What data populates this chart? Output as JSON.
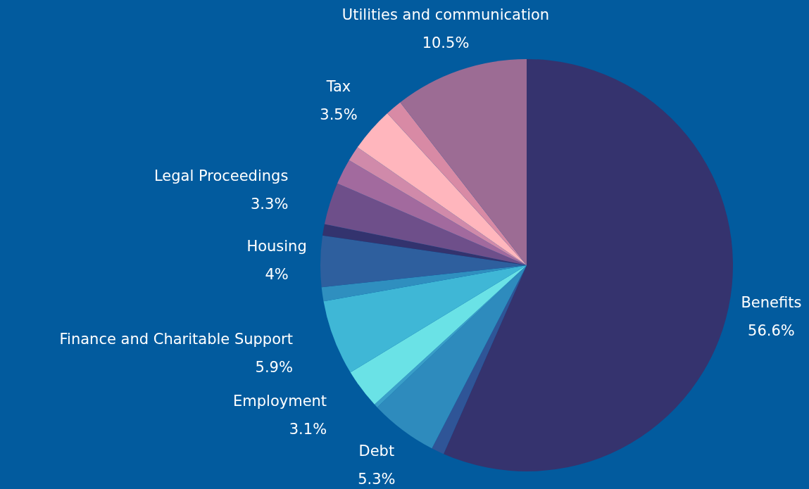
{
  "chart_data": {
    "type": "pie",
    "categories": [
      "Benefits",
      null,
      "Debt",
      null,
      "Employment",
      "Finance and Charitable Support",
      null,
      "Housing",
      null,
      "Legal Proceedings",
      null,
      null,
      "Tax",
      null,
      "Utilities and communication"
    ],
    "values": [
      56.6,
      1.0,
      5.3,
      0.3,
      3.1,
      5.9,
      1.1,
      4,
      0.9,
      3.3,
      2.0,
      1.2,
      3.5,
      1.3,
      10.5
    ],
    "value_labels": [
      "56.6%",
      null,
      "5.3%",
      null,
      "3.1%",
      "5.9%",
      null,
      "4%",
      null,
      "3.3%",
      null,
      null,
      "3.5%",
      null,
      "10.5%"
    ],
    "colors": [
      "#35336e",
      "#2f5597",
      "#2e8bbd",
      "#3a9fc9",
      "#6ae2e6",
      "#3fb7d6",
      "#2f8fbf",
      "#2e5f9e",
      "#33336e",
      "#6e4f8a",
      "#a26a9e",
      "#d08aaa",
      "#ffb6bd",
      "#d88aa5",
      "#9c6c94"
    ],
    "legend": false
  }
}
